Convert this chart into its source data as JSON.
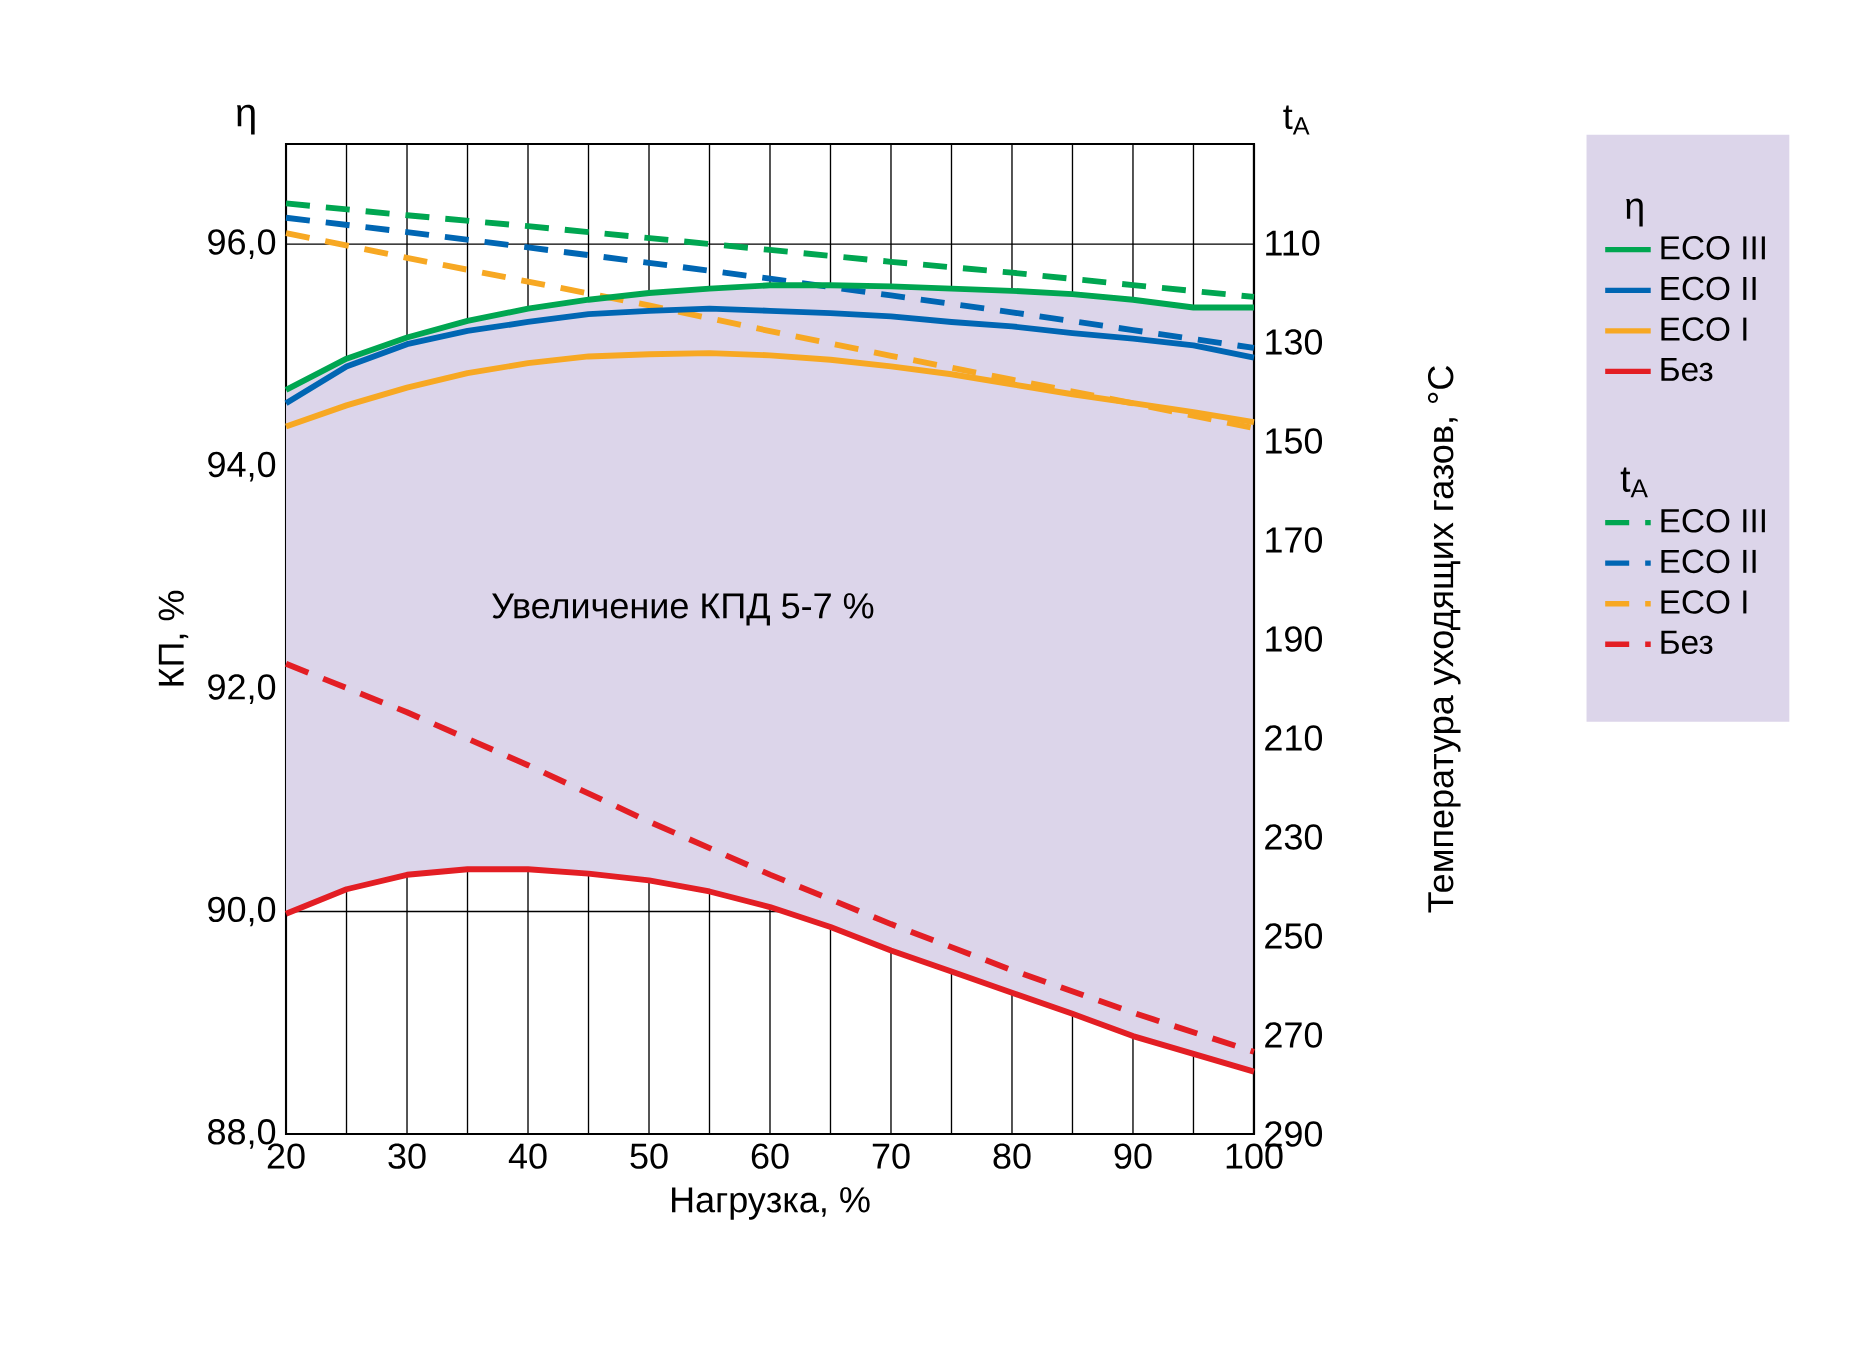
{
  "chart_data": {
    "type": "line",
    "xlabel": "Нагрузка, %",
    "ylabel": "КП, %",
    "y2label": "Температура уходящих газов, °C",
    "xlim": [
      20,
      100
    ],
    "xticks": [
      20,
      30,
      40,
      50,
      60,
      70,
      80,
      90,
      100
    ],
    "ylim": [
      88,
      96.9
    ],
    "yticks": [
      {
        "value": 88,
        "label": "88,0"
      },
      {
        "value": 90,
        "label": "90,0"
      },
      {
        "value": 92,
        "label": "92,0"
      },
      {
        "value": 94,
        "label": "94,0"
      },
      {
        "value": 96,
        "label": "96,0"
      }
    ],
    "y2lim": [
      290,
      90
    ],
    "y2ticks": [
      110,
      130,
      150,
      170,
      190,
      210,
      230,
      250,
      270,
      290
    ],
    "grid": true,
    "legend": "right",
    "marker": "none",
    "annotations": [
      "η",
      "t$_{A}$",
      "Увеличение КПД 5-7 %"
    ],
    "series": [
      {
        "name": "ECO III",
        "color": "#00a651",
        "line_style": "solid",
        "x": [
          20,
          25,
          30,
          35,
          40,
          45,
          50,
          55,
          60,
          65,
          70,
          75,
          80,
          85,
          90,
          95,
          100
        ],
        "values": [
          94.69,
          94.97,
          95.16,
          95.31,
          95.42,
          95.5,
          95.56,
          95.6,
          95.63,
          95.63,
          95.62,
          95.6,
          95.58,
          95.55,
          95.5,
          95.43,
          95.43
        ]
      },
      {
        "name": "ECO II",
        "color": "#0066b3",
        "line_style": "solid",
        "x": [
          20,
          25,
          30,
          35,
          40,
          45,
          50,
          55,
          60,
          65,
          70,
          75,
          80,
          85,
          90,
          95,
          100
        ],
        "values": [
          94.57,
          94.9,
          95.1,
          95.22,
          95.3,
          95.37,
          95.4,
          95.42,
          95.4,
          95.38,
          95.35,
          95.3,
          95.26,
          95.2,
          95.15,
          95.09,
          94.98
        ]
      },
      {
        "name": "ECO I",
        "color": "#f7a823",
        "line_style": "solid",
        "x": [
          20,
          25,
          30,
          35,
          40,
          45,
          50,
          55,
          60,
          65,
          70,
          75,
          80,
          85,
          90,
          95,
          100
        ],
        "values": [
          94.36,
          94.55,
          94.71,
          94.84,
          94.93,
          94.99,
          95.01,
          95.02,
          95.0,
          94.96,
          94.9,
          94.83,
          94.74,
          94.65,
          94.57,
          94.49,
          94.4
        ]
      },
      {
        "name": "Без",
        "color": "#e31e24",
        "line_style": "solid",
        "x": [
          20,
          25,
          30,
          35,
          40,
          45,
          50,
          55,
          60,
          65,
          70,
          75,
          80,
          85,
          90,
          95,
          100
        ],
        "values": [
          89.98,
          90.2,
          90.33,
          90.38,
          90.38,
          90.34,
          90.28,
          90.18,
          90.04,
          89.86,
          89.65,
          89.46,
          89.27,
          89.08,
          88.88,
          88.72,
          88.56
        ],
        "lower": [
          89.98,
          90.2,
          90.33,
          90.38,
          90.38,
          90.34,
          90.28,
          90.18,
          90.04,
          89.86,
          89.65,
          89.46,
          89.27,
          89.08,
          88.88,
          88.72,
          88.56
        ],
        "upper": [
          94.69,
          94.97,
          95.16,
          95.31,
          95.42,
          95.5,
          95.56,
          95.6,
          95.63,
          95.63,
          95.62,
          95.6,
          95.58,
          95.55,
          95.5,
          95.43,
          95.43
        ]
      },
      {
        "name": "ECO III",
        "color": "#00a651",
        "line_style": "dashed",
        "axis": "y2",
        "x": [
          20,
          30,
          40,
          50,
          60,
          70,
          80,
          90,
          100
        ],
        "values": [
          102.0,
          104.4,
          106.6,
          109.0,
          111.4,
          113.8,
          116.0,
          118.5,
          120.9
        ]
      },
      {
        "name": "ECO II",
        "color": "#0066b3",
        "line_style": "dashed",
        "axis": "y2",
        "x": [
          20,
          30,
          40,
          50,
          60,
          70,
          80,
          90,
          100
        ],
        "values": [
          104.9,
          107.8,
          110.9,
          114.0,
          117.2,
          120.6,
          124.0,
          127.6,
          131.2
        ]
      },
      {
        "name": "ECO I",
        "color": "#f7a823",
        "line_style": "dashed",
        "axis": "y2",
        "x": [
          20,
          30,
          40,
          50,
          60,
          70,
          80,
          90,
          100
        ],
        "values": [
          108.0,
          113.0,
          117.8,
          122.6,
          127.8,
          132.8,
          137.6,
          142.4,
          147.4
        ]
      },
      {
        "name": "Без",
        "color": "#e31e24",
        "line_style": "dashed",
        "axis": "y2",
        "x": [
          20,
          30,
          40,
          50,
          60,
          70,
          80,
          90,
          100
        ],
        "values": [
          195.0,
          204.8,
          215.5,
          226.9,
          237.6,
          247.6,
          256.9,
          265.5,
          273.4
        ]
      }
    ]
  }
}
